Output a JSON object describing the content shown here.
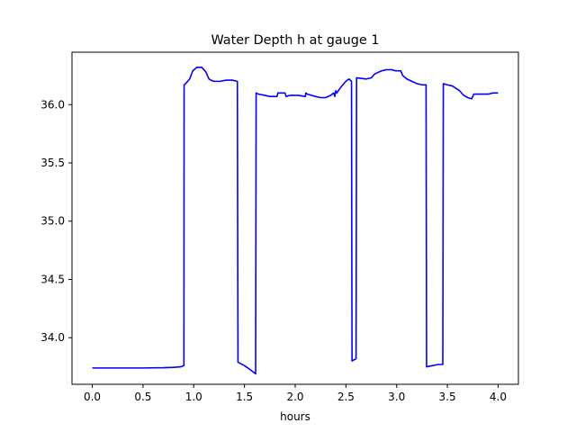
{
  "chart_data": {
    "type": "line",
    "title": "Water Depth h at gauge 1",
    "xlabel": "hours",
    "ylabel": "",
    "xlim": [
      -0.2,
      4.2
    ],
    "ylim": [
      33.6,
      36.45
    ],
    "xticks": [
      0.0,
      0.5,
      1.0,
      1.5,
      2.0,
      2.5,
      3.0,
      3.5,
      4.0
    ],
    "xtick_labels": [
      "0.0",
      "0.5",
      "1.0",
      "1.5",
      "2.0",
      "2.5",
      "3.0",
      "3.5",
      "4.0"
    ],
    "yticks": [
      34.0,
      34.5,
      35.0,
      35.5,
      36.0
    ],
    "ytick_labels": [
      "34.0",
      "34.5",
      "35.0",
      "35.5",
      "36.0"
    ],
    "grid": false,
    "series": [
      {
        "color": "#0000ff",
        "x": [
          0.0,
          0.5,
          0.7,
          0.8,
          0.87,
          0.903,
          0.905,
          0.92,
          0.96,
          0.99,
          1.03,
          1.08,
          1.12,
          1.15,
          1.17,
          1.2,
          1.26,
          1.32,
          1.38,
          1.43,
          1.436,
          1.5,
          1.55,
          1.61,
          1.615,
          1.64,
          1.7,
          1.75,
          1.82,
          1.83,
          1.85,
          1.9,
          1.91,
          1.95,
          2.03,
          2.1,
          2.105,
          2.12,
          2.2,
          2.25,
          2.3,
          2.35,
          2.38,
          2.39,
          2.4,
          2.41,
          2.45,
          2.5,
          2.53,
          2.555,
          2.56,
          2.6,
          2.605,
          2.7,
          2.75,
          2.78,
          2.8,
          2.85,
          2.9,
          2.95,
          2.99,
          3.0,
          3.04,
          3.06,
          3.1,
          3.15,
          3.2,
          3.25,
          3.29,
          3.295,
          3.35,
          3.41,
          3.455,
          3.46,
          3.5,
          3.55,
          3.62,
          3.66,
          3.7,
          3.74,
          3.76,
          3.8,
          3.85,
          3.9,
          3.95,
          4.0
        ],
        "y": [
          33.74,
          33.74,
          33.742,
          33.745,
          33.75,
          33.76,
          36.17,
          36.18,
          36.22,
          36.29,
          36.32,
          36.32,
          36.28,
          36.22,
          36.21,
          36.2,
          36.2,
          36.21,
          36.21,
          36.2,
          33.79,
          33.76,
          33.73,
          33.69,
          36.1,
          36.09,
          36.08,
          36.07,
          36.07,
          36.1,
          36.1,
          36.1,
          36.07,
          36.08,
          36.08,
          36.07,
          36.1,
          36.09,
          36.07,
          36.06,
          36.06,
          36.08,
          36.1,
          36.07,
          36.12,
          36.1,
          36.15,
          36.2,
          36.22,
          36.2,
          33.8,
          33.82,
          36.23,
          36.22,
          36.23,
          36.26,
          36.27,
          36.29,
          36.3,
          36.3,
          36.29,
          36.29,
          36.29,
          36.25,
          36.22,
          36.2,
          36.18,
          36.17,
          36.17,
          33.75,
          33.76,
          33.77,
          33.77,
          36.18,
          36.17,
          36.16,
          36.12,
          36.08,
          36.06,
          36.05,
          36.09,
          36.09,
          36.09,
          36.09,
          36.1,
          36.1
        ]
      }
    ]
  }
}
